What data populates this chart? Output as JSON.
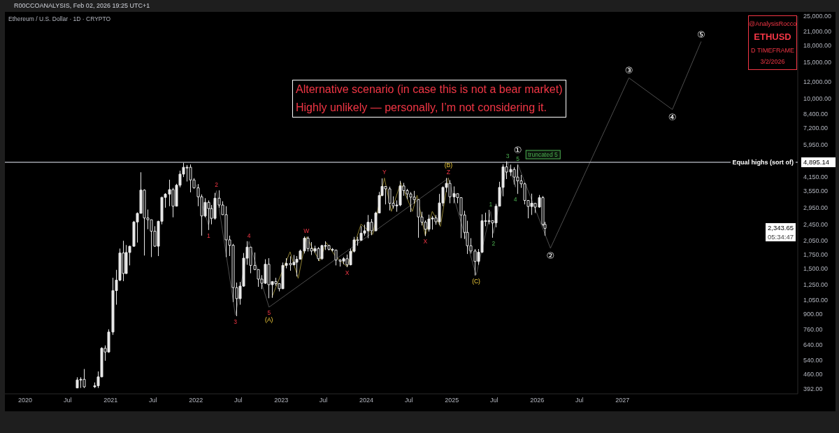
{
  "chart_data": {
    "type": "candlestick",
    "title": "Ethereum / U.S. Dollar · 1D · CRYPTO",
    "subtitle": "R00CCOANALYSIS, Feb 02, 2026 19:25 UTC+1",
    "color": "#e8e8e8",
    "x": [
      "2020-08-08",
      "2020-08-23",
      "2020-09-08",
      "2020-10-23",
      "2020-11-08",
      "2020-11-23",
      "2020-12-08",
      "2020-12-23",
      "2021-01-08",
      "2021-01-23",
      "2021-02-08",
      "2021-02-23",
      "2021-03-08",
      "2021-03-23",
      "2021-04-08",
      "2021-04-23",
      "2021-05-08",
      "2021-05-23",
      "2021-06-08",
      "2021-06-23",
      "2021-07-08",
      "2021-07-23",
      "2021-08-08",
      "2021-08-23",
      "2021-09-08",
      "2021-09-23",
      "2021-10-08",
      "2021-10-23",
      "2021-11-08",
      "2021-11-23",
      "2021-12-08",
      "2021-12-23",
      "2022-01-08",
      "2022-01-23",
      "2022-02-08",
      "2022-02-23",
      "2022-03-08",
      "2022-03-23",
      "2022-04-08",
      "2022-04-23",
      "2022-05-08",
      "2022-05-23",
      "2022-06-08",
      "2022-06-23",
      "2022-07-08",
      "2022-07-23",
      "2022-08-08",
      "2022-08-23",
      "2022-09-08",
      "2022-09-23",
      "2022-10-08",
      "2022-10-23",
      "2022-11-08",
      "2022-11-23",
      "2022-12-08",
      "2022-12-23",
      "2023-01-08",
      "2023-01-23",
      "2023-02-08",
      "2023-02-23",
      "2023-03-08",
      "2023-03-23",
      "2023-04-08",
      "2023-04-23",
      "2023-05-08",
      "2023-05-23",
      "2023-06-08",
      "2023-06-23",
      "2023-07-08",
      "2023-07-23",
      "2023-08-08",
      "2023-08-23",
      "2023-09-08",
      "2023-09-23",
      "2023-10-08",
      "2023-10-23",
      "2023-11-08",
      "2023-11-23",
      "2023-12-08",
      "2023-12-23",
      "2024-01-08",
      "2024-01-23",
      "2024-02-08",
      "2024-02-23",
      "2024-03-08",
      "2024-03-23",
      "2024-04-08",
      "2024-04-23",
      "2024-05-08",
      "2024-05-23",
      "2024-06-08",
      "2024-06-23",
      "2024-07-08",
      "2024-07-23",
      "2024-08-08",
      "2024-08-23",
      "2024-09-08",
      "2024-09-23",
      "2024-10-08",
      "2024-10-23",
      "2024-11-08",
      "2024-11-23",
      "2024-12-08",
      "2024-12-23",
      "2025-01-08",
      "2025-01-23",
      "2025-02-08",
      "2025-02-23",
      "2025-03-08",
      "2025-03-23",
      "2025-04-08",
      "2025-04-23",
      "2025-05-08",
      "2025-05-23",
      "2025-06-08",
      "2025-06-23",
      "2025-07-08",
      "2025-07-23",
      "2025-08-08",
      "2025-08-23",
      "2025-09-08",
      "2025-09-23",
      "2025-10-08",
      "2025-10-23",
      "2025-11-08",
      "2025-11-23",
      "2025-12-08",
      "2025-12-23",
      "2026-01-08",
      "2026-01-23",
      "2026-02-02"
    ],
    "ohlc": [
      [
        395,
        445,
        395,
        432
      ],
      [
        432,
        445,
        395,
        435
      ],
      [
        435,
        488,
        395,
        400
      ],
      [
        400,
        420,
        395,
        405
      ],
      [
        405,
        475,
        395,
        447
      ],
      [
        447,
        622,
        445,
        615
      ],
      [
        615,
        635,
        535,
        590
      ],
      [
        590,
        760,
        585,
        737
      ],
      [
        737,
        1350,
        714,
        1170
      ],
      [
        1170,
        1475,
        1000,
        1315
      ],
      [
        1315,
        1870,
        1300,
        1780
      ],
      [
        1780,
        2040,
        1300,
        1416
      ],
      [
        1416,
        1945,
        1410,
        1790
      ],
      [
        1790,
        1930,
        1550,
        1918
      ],
      [
        1918,
        2545,
        1910,
        2515
      ],
      [
        2515,
        2800,
        2000,
        2770
      ],
      [
        2770,
        4380,
        2770,
        3590
      ],
      [
        3590,
        3620,
        1730,
        2630
      ],
      [
        2630,
        2890,
        2320,
        2580
      ],
      [
        2580,
        2580,
        1700,
        2270
      ],
      [
        2270,
        2400,
        1910,
        1920
      ],
      [
        1920,
        2550,
        1720,
        2535
      ],
      [
        2535,
        3330,
        2450,
        3310
      ],
      [
        3310,
        3470,
        2950,
        3430
      ],
      [
        3430,
        4030,
        3000,
        3610
      ],
      [
        3610,
        3680,
        2650,
        3000
      ],
      [
        3000,
        3850,
        2990,
        3790
      ],
      [
        3790,
        4460,
        3700,
        4290
      ],
      [
        4290,
        4870,
        4150,
        4630
      ],
      [
        4630,
        4750,
        3950,
        4630
      ],
      [
        4630,
        4780,
        3500,
        4020
      ],
      [
        4020,
        4100,
        3650,
        3680
      ],
      [
        3680,
        3840,
        3000,
        3330
      ],
      [
        3330,
        3420,
        2160,
        2690
      ],
      [
        2690,
        3280,
        2650,
        3130
      ],
      [
        3130,
        3200,
        2300,
        2920
      ],
      [
        2920,
        3040,
        2450,
        2620
      ],
      [
        2620,
        3480,
        2580,
        3280
      ],
      [
        3280,
        3580,
        2950,
        3040
      ],
      [
        3040,
        3170,
        2720,
        2730
      ],
      [
        2730,
        3000,
        1700,
        2060
      ],
      [
        2060,
        2160,
        1720,
        1940
      ],
      [
        1940,
        1970,
        1030,
        1210
      ],
      [
        1210,
        1280,
        880,
        1070
      ],
      [
        1070,
        1290,
        1000,
        1230
      ],
      [
        1230,
        1780,
        1220,
        1680
      ],
      [
        1680,
        2030,
        1560,
        1900
      ],
      [
        1900,
        1900,
        1420,
        1550
      ],
      [
        1550,
        1790,
        1470,
        1480
      ],
      [
        1480,
        1480,
        1220,
        1330
      ],
      [
        1330,
        1390,
        1190,
        1270
      ],
      [
        1270,
        1660,
        1260,
        1570
      ],
      [
        1570,
        1680,
        1075,
        1250
      ],
      [
        1250,
        1300,
        1080,
        1295
      ],
      [
        1295,
        1350,
        1235,
        1265
      ],
      [
        1265,
        1270,
        1160,
        1195
      ],
      [
        1195,
        1600,
        1190,
        1550
      ],
      [
        1550,
        1680,
        1500,
        1585
      ],
      [
        1585,
        1715,
        1460,
        1560
      ],
      [
        1560,
        1740,
        1550,
        1605
      ],
      [
        1605,
        1720,
        1370,
        1660
      ],
      [
        1660,
        1850,
        1660,
        1820
      ],
      [
        1820,
        2140,
        1770,
        2100
      ],
      [
        2100,
        2140,
        1810,
        1870
      ],
      [
        1870,
        2010,
        1740,
        1820
      ],
      [
        1820,
        1930,
        1780,
        1870
      ],
      [
        1870,
        1900,
        1630,
        1670
      ],
      [
        1670,
        1950,
        1650,
        1935
      ],
      [
        1935,
        2030,
        1840,
        1935
      ],
      [
        1935,
        1950,
        1830,
        1855
      ],
      [
        1855,
        1880,
        1810,
        1840
      ],
      [
        1840,
        1840,
        1550,
        1645
      ],
      [
        1645,
        1660,
        1530,
        1625
      ],
      [
        1625,
        1700,
        1570,
        1670
      ],
      [
        1670,
        1750,
        1520,
        1560
      ],
      [
        1560,
        1870,
        1550,
        1815
      ],
      [
        1815,
        2130,
        1790,
        2060
      ],
      [
        2060,
        2130,
        1930,
        2050
      ],
      [
        2050,
        2400,
        2040,
        2220
      ],
      [
        2220,
        2440,
        2160,
        2280
      ],
      [
        2280,
        2720,
        2100,
        2510
      ],
      [
        2510,
        2600,
        2170,
        2280
      ],
      [
        2280,
        2820,
        2270,
        2780
      ],
      [
        2780,
        3520,
        2770,
        3380
      ],
      [
        3380,
        4090,
        3350,
        3740
      ],
      [
        3740,
        3750,
        3060,
        3640
      ],
      [
        3640,
        3730,
        2860,
        3100
      ],
      [
        3100,
        3350,
        2920,
        3010
      ],
      [
        3010,
        3200,
        2820,
        3040
      ],
      [
        3040,
        3980,
        3000,
        3760
      ],
      [
        3760,
        3890,
        3370,
        3570
      ],
      [
        3570,
        3640,
        3240,
        3440
      ],
      [
        3440,
        3510,
        2810,
        3320
      ],
      [
        3320,
        3560,
        3090,
        3230
      ],
      [
        3230,
        3240,
        2110,
        2660
      ],
      [
        2660,
        2820,
        2420,
        2510
      ],
      [
        2510,
        2560,
        2150,
        2320
      ],
      [
        2320,
        2730,
        2260,
        2600
      ],
      [
        2600,
        2690,
        2310,
        2630
      ],
      [
        2630,
        2720,
        2440,
        2520
      ],
      [
        2520,
        3440,
        2430,
        3110
      ],
      [
        3110,
        3740,
        3000,
        3700
      ],
      [
        3700,
        4110,
        3510,
        3870
      ],
      [
        3870,
        4010,
        3100,
        3330
      ],
      [
        3330,
        3740,
        3100,
        3450
      ],
      [
        3450,
        3450,
        3100,
        3300
      ],
      [
        3300,
        3310,
        2100,
        2720
      ],
      [
        2720,
        2850,
        2080,
        2240
      ],
      [
        2240,
        2550,
        1760,
        1930
      ],
      [
        1930,
        2100,
        1770,
        1820
      ],
      [
        1820,
        1860,
        1385,
        1620
      ],
      [
        1620,
        1860,
        1560,
        1795
      ],
      [
        1795,
        2740,
        1780,
        2550
      ],
      [
        2550,
        2790,
        2400,
        2530
      ],
      [
        2530,
        2880,
        2450,
        2550
      ],
      [
        2550,
        2560,
        2110,
        2490
      ],
      [
        2490,
        3080,
        2370,
        3000
      ],
      [
        3000,
        3940,
        3000,
        3700
      ],
      [
        3700,
        4790,
        3350,
        4650
      ],
      [
        4650,
        4950,
        4060,
        4390
      ],
      [
        4390,
        4770,
        4200,
        4520
      ],
      [
        4520,
        4630,
        3820,
        4150
      ],
      [
        4150,
        4760,
        3440,
        3980
      ],
      [
        3980,
        4250,
        3680,
        3850
      ],
      [
        3850,
        3900,
        3060,
        3200
      ],
      [
        3200,
        3200,
        2620,
        2990
      ],
      [
        2990,
        3450,
        2720,
        3100
      ],
      [
        3100,
        3100,
        2780,
        2970
      ],
      [
        2970,
        3400,
        2950,
        3300
      ],
      [
        3300,
        3360,
        2400,
        2450
      ],
      [
        2450,
        2520,
        2160,
        2343.65
      ]
    ],
    "series": [
      {
        "type": "line",
        "color": "#4e4e4e",
        "x": [
          "2022-01-03",
          "2022-02-24",
          "2022-03-30",
          "2022-06-19",
          "2022-08-16",
          "2022-11-10",
          "2024-12-17",
          "2025-04-15",
          "2025-06-16",
          "2025-06-28",
          "2025-08-28",
          "2025-09-30",
          "2025-10-10",
          "2026-02-27",
          "2027-01-29",
          "2027-08-03",
          "2027-12-04"
        ],
        "values": [
          3805,
          2425,
          3568,
          889,
          2026,
          973,
          4100,
          1390,
          2830,
          2216,
          4930,
          3710,
          4800,
          1878,
          12550,
          8820,
          18770
        ]
      },
      {
        "type": "line",
        "color": "#8f8133",
        "x": [
          "2022-11-23",
          "2023-02-08",
          "2023-03-15",
          "2023-04-19",
          "2023-06-14",
          "2023-07-13",
          "2023-08-22",
          "2023-10-11",
          "2023-12-09",
          "2024-01-28",
          "2024-03-18",
          "2024-04-17",
          "2024-05-27",
          "2024-07-16",
          "2024-08-05",
          "2024-09-09",
          "2024-10-09",
          "2024-11-13",
          "2024-12-17"
        ],
        "values": [
          1092,
          1804,
          1341,
          2132,
          1627,
          2000,
          1713,
          1526,
          2457,
          2189,
          4109,
          2830,
          3905,
          2830,
          3389,
          2160,
          2830,
          2394,
          4100
        ]
      }
    ],
    "xlim": [
      "2019-10-06",
      "2029-01-21"
    ],
    "xticks": [
      {
        "value": "2020-01-01",
        "label": "2020"
      },
      {
        "value": "2020-07-01",
        "label": "Jul"
      },
      {
        "value": "2021-01-01",
        "label": "2021"
      },
      {
        "value": "2021-07-01",
        "label": "Jul"
      },
      {
        "value": "2022-01-01",
        "label": "2022"
      },
      {
        "value": "2022-07-01",
        "label": "Jul"
      },
      {
        "value": "2023-01-01",
        "label": "2023"
      },
      {
        "value": "2023-07-01",
        "label": "Jul"
      },
      {
        "value": "2024-01-01",
        "label": "2024"
      },
      {
        "value": "2024-07-01",
        "label": "Jul"
      },
      {
        "value": "2025-01-01",
        "label": "2025"
      },
      {
        "value": "2025-07-01",
        "label": "Jul"
      },
      {
        "value": "2026-01-01",
        "label": "2026"
      },
      {
        "value": "2026-07-01",
        "label": "Jul"
      },
      {
        "value": "2027-01-01",
        "label": "2027"
      }
    ],
    "ylim": [
      370,
      25000
    ],
    "yticks": [
      {
        "value": 25000,
        "label": "25,000.00"
      },
      {
        "value": 21000,
        "label": "21,000.00"
      },
      {
        "value": 18000,
        "label": "18,000.00"
      },
      {
        "value": 15000,
        "label": "15,000.00"
      },
      {
        "value": 12000,
        "label": "12,000.00"
      },
      {
        "value": 10000,
        "label": "10,000.00"
      },
      {
        "value": 8400,
        "label": "8,400.00"
      },
      {
        "value": 7200,
        "label": "7,200.00"
      },
      {
        "value": 5950,
        "label": "5,950.00"
      },
      {
        "value": 4895.14,
        "label": "4,895.14"
      },
      {
        "value": 4150,
        "label": "4,150.00"
      },
      {
        "value": 3550,
        "label": "3,550.00"
      },
      {
        "value": 2950,
        "label": "2,950.00"
      },
      {
        "value": 2450,
        "label": "2,450.00"
      },
      {
        "value": 2050,
        "label": "2,050.00"
      },
      {
        "value": 1750,
        "label": "1,750.00"
      },
      {
        "value": 1500,
        "label": "1,500.00"
      },
      {
        "value": 1250,
        "label": "1,250.00"
      },
      {
        "value": 1050,
        "label": "1,050.00"
      },
      {
        "value": 900,
        "label": "900.00"
      },
      {
        "value": 760,
        "label": "760.00"
      },
      {
        "value": 640,
        "label": "640.00"
      },
      {
        "value": 540,
        "label": "540.00"
      },
      {
        "value": 460,
        "label": "460.00"
      },
      {
        "value": 392,
        "label": "392.00"
      }
    ],
    "log": true,
    "ref_lines": [
      {
        "axis": "y",
        "value": 4895.14,
        "label": "Equal highs (sort of)",
        "color": "#a0a3ab"
      }
    ],
    "annotations": [
      {
        "text": "1",
        "x": "2022-02-24",
        "y": 2425
      },
      {
        "text": "2",
        "x": "2022-03-30",
        "y": 3568
      },
      {
        "text": "3",
        "x": "2022-06-19",
        "y": 889
      },
      {
        "text": "4",
        "x": "2022-08-16",
        "y": 2026
      },
      {
        "text": "5",
        "x": "2022-11-10",
        "y": 973
      },
      {
        "text": "(A)",
        "x": "2022-11-10",
        "y": 973
      },
      {
        "text": "W",
        "x": "2023-04-19",
        "y": 2132
      },
      {
        "text": "X",
        "x": "2023-10-11",
        "y": 1526
      },
      {
        "text": "Y",
        "x": "2024-03-18",
        "y": 4109
      },
      {
        "text": "X",
        "x": "2024-09-09",
        "y": 2160
      },
      {
        "text": "Z",
        "x": "2024-12-17",
        "y": 4100
      },
      {
        "text": "(B)",
        "x": "2024-12-17",
        "y": 4100
      },
      {
        "text": "(C)",
        "x": "2025-04-15",
        "y": 1390
      },
      {
        "text": "1",
        "x": "2025-06-16",
        "y": 2830
      },
      {
        "text": "2",
        "x": "2025-06-28",
        "y": 2216
      },
      {
        "text": "3",
        "x": "2025-08-28",
        "y": 4930
      },
      {
        "text": "4",
        "x": "2025-09-30",
        "y": 3710
      },
      {
        "text": "5",
        "x": "2025-10-10",
        "y": 4800
      },
      {
        "text": "①",
        "x": "2025-10-10",
        "y": 4800
      },
      {
        "text": "truncated 5",
        "x": "2025-10-10",
        "y": 4800
      },
      {
        "text": "②",
        "x": "2026-02-27",
        "y": 1878
      },
      {
        "text": "③",
        "x": "2027-01-29",
        "y": 12550
      },
      {
        "text": "④",
        "x": "2027-08-03",
        "y": 8820
      },
      {
        "text": "⑤",
        "x": "2027-12-04",
        "y": 18770
      },
      "2,343.65\n05:34:47",
      "Alternative scenario (in case this is not a bear market)\nHighly unlikely — personally, I’m not considering it.",
      "@AnalysisRocco\nETHUSD\nD TIMEFRAME\n3/2/2026"
    ]
  }
}
